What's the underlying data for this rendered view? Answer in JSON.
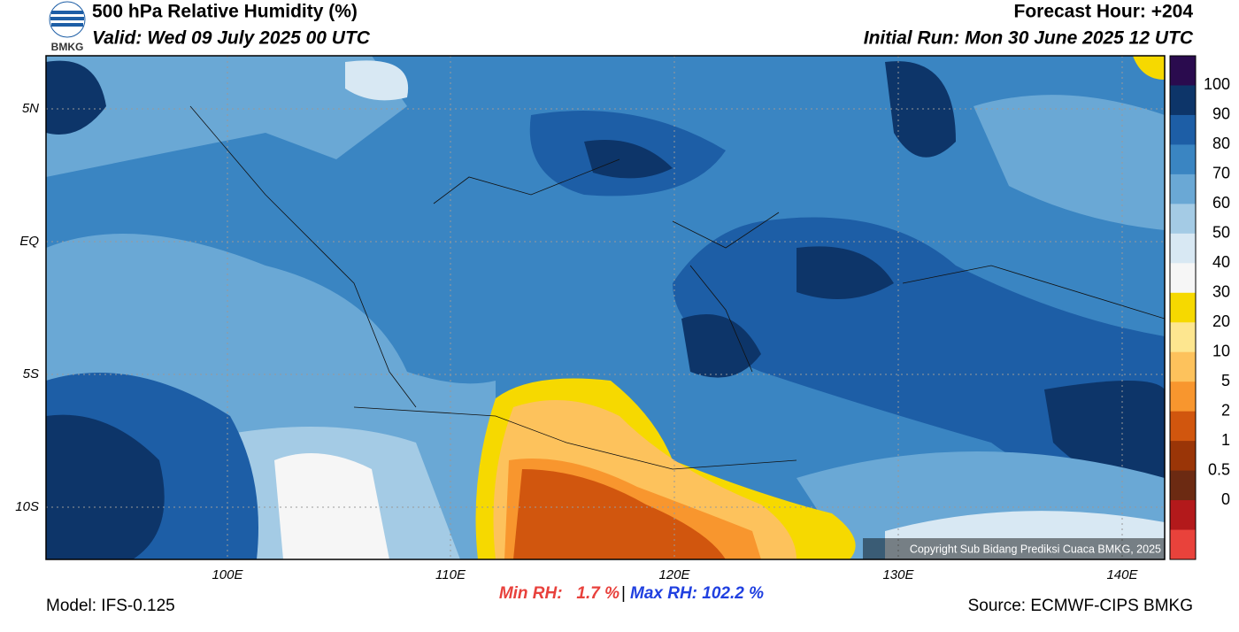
{
  "header": {
    "logo_text": "BMKG",
    "title": "500 hPa Relative Humidity (%)",
    "valid": "Valid: Wed 09 July 2025 00 UTC",
    "forecast_hour": "Forecast Hour: +204",
    "initial_run": "Initial Run: Mon 30 June 2025 12 UTC"
  },
  "map": {
    "lat_labels": [
      "5N",
      "EQ",
      "5S",
      "10S"
    ],
    "lon_labels": [
      "100E",
      "110E",
      "120E",
      "130E",
      "140E"
    ],
    "copyright": "Copyright Sub Bidang Prediksi Cuaca BMKG, 2025"
  },
  "colorbar": {
    "labels": [
      100,
      90,
      80,
      70,
      60,
      50,
      40,
      30,
      20,
      10,
      5,
      2,
      1,
      0.5,
      0
    ],
    "colors": [
      "#2a0b4e",
      "#0d3569",
      "#1d5ea6",
      "#3a85c2",
      "#6aa8d5",
      "#a4cbe5",
      "#d8e8f3",
      "#f6f6f6",
      "#f6d900",
      "#fde68f",
      "#fdc25c",
      "#f8962e",
      "#d1560e",
      "#9a3507",
      "#6c2a12",
      "#b3191b",
      "#e9423b"
    ]
  },
  "footer": {
    "min_rh": "Min RH:   1.7 %",
    "separator": "|",
    "max_rh": "Max RH: 102.2 %",
    "model": "Model: IFS-0.125",
    "source": "Source: ECMWF-CIPS BMKG"
  }
}
